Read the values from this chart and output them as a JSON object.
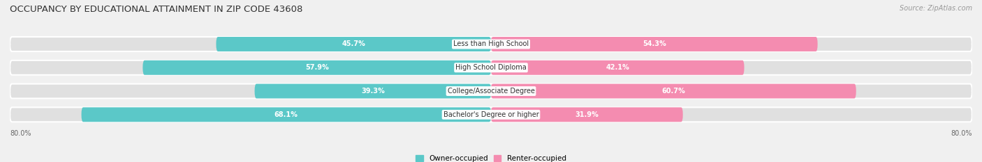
{
  "title": "OCCUPANCY BY EDUCATIONAL ATTAINMENT IN ZIP CODE 43608",
  "source": "Source: ZipAtlas.com",
  "categories": [
    "Less than High School",
    "High School Diploma",
    "College/Associate Degree",
    "Bachelor's Degree or higher"
  ],
  "owner_pct": [
    45.7,
    57.9,
    39.3,
    68.1
  ],
  "renter_pct": [
    54.3,
    42.1,
    60.7,
    31.9
  ],
  "owner_color": "#5bc8c8",
  "renter_color": "#f48cb0",
  "renter_color_light": "#f8c0d4",
  "xlim_left": -80.0,
  "xlim_right": 80.0,
  "x_axis_left_label": "80.0%",
  "x_axis_right_label": "80.0%",
  "bg_color": "#f0f0f0",
  "bar_bg_color": "#e0e0e0",
  "title_fontsize": 9.5,
  "source_fontsize": 7,
  "label_fontsize": 7,
  "pct_fontsize": 7,
  "legend_fontsize": 7.5
}
